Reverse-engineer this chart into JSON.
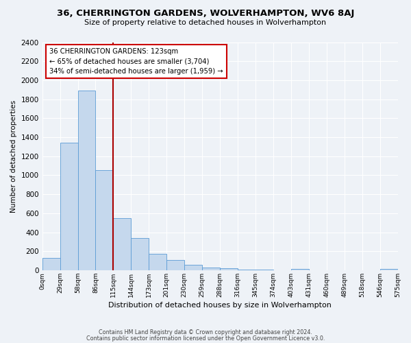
{
  "title": "36, CHERRINGTON GARDENS, WOLVERHAMPTON, WV6 8AJ",
  "subtitle": "Size of property relative to detached houses in Wolverhampton",
  "xlabel": "Distribution of detached houses by size in Wolverhampton",
  "ylabel": "Number of detached properties",
  "footer_line1": "Contains HM Land Registry data © Crown copyright and database right 2024.",
  "footer_line2": "Contains public sector information licensed under the Open Government Licence v3.0.",
  "bin_edge_labels": [
    "0sqm",
    "29sqm",
    "58sqm",
    "86sqm",
    "115sqm",
    "144sqm",
    "173sqm",
    "201sqm",
    "230sqm",
    "259sqm",
    "288sqm",
    "316sqm",
    "345sqm",
    "374sqm",
    "403sqm",
    "431sqm",
    "460sqm",
    "489sqm",
    "518sqm",
    "546sqm",
    "575sqm"
  ],
  "bar_values": [
    130,
    1340,
    1890,
    1050,
    550,
    340,
    175,
    110,
    60,
    30,
    20,
    10,
    10,
    0,
    15,
    0,
    0,
    0,
    0,
    15
  ],
  "bar_color": "#c5d8ed",
  "bar_edge_color": "#5b9bd5",
  "ylim": [
    0,
    2400
  ],
  "yticks": [
    0,
    200,
    400,
    600,
    800,
    1000,
    1200,
    1400,
    1600,
    1800,
    2000,
    2200,
    2400
  ],
  "vline_x": 4,
  "vline_color": "#aa0000",
  "annotation_text_line1": "36 CHERRINGTON GARDENS: 123sqm",
  "annotation_text_line2": "← 65% of detached houses are smaller (3,704)",
  "annotation_text_line3": "34% of semi-detached houses are larger (1,959) →",
  "background_color": "#eef2f7",
  "plot_bg_color": "#eef2f7",
  "grid_color": "#ffffff"
}
